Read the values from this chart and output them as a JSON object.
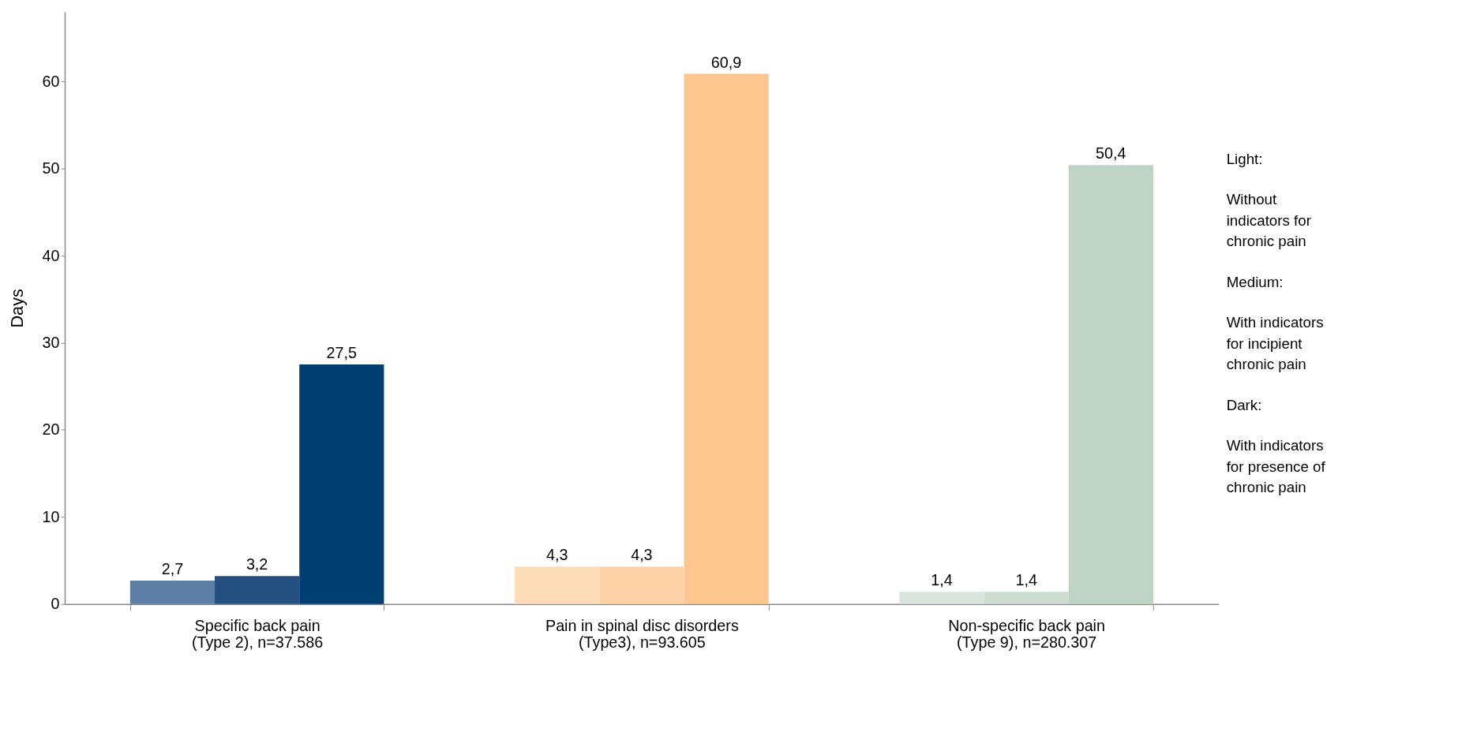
{
  "chart_data": {
    "type": "bar",
    "ylabel": "Days",
    "categories": [
      "Specific back pain\n(Type 2), n=37.586",
      "Pain in spinal disc disorders\n(Type3), n=93.605",
      "Non-specific back pain\n(Type 9), n=280.307"
    ],
    "series": [
      {
        "colors": [
          "#5d7fa6",
          "#fddcb8",
          "#d9e5dc"
        ],
        "values": [
          2.7,
          4.3,
          1.4
        ],
        "value_labels": [
          "2,7",
          "4,3",
          "1,4"
        ]
      },
      {
        "colors": [
          "#254f80",
          "#fdd2a6",
          "#cddcd0"
        ],
        "values": [
          3.2,
          4.3,
          1.4
        ],
        "value_labels": [
          "3,2",
          "4,3",
          "1,4"
        ]
      },
      {
        "colors": [
          "#003f72",
          "#fdc68e",
          "#c0d4c6"
        ],
        "values": [
          27.5,
          60.9,
          50.4
        ],
        "value_labels": [
          "27,5",
          "60,9",
          "50,4"
        ]
      }
    ],
    "ylim": [
      0,
      68
    ],
    "yticks": [
      0,
      10,
      20,
      30,
      40,
      50,
      60
    ],
    "grid": false,
    "annotations": [
      "Light:",
      "Without\nindicators for\nchronic pain",
      "Medium:",
      "With indicators\nfor incipient\nchronic pain",
      "Dark:",
      "With indicators\nfor presence of\nchronic pain"
    ]
  }
}
